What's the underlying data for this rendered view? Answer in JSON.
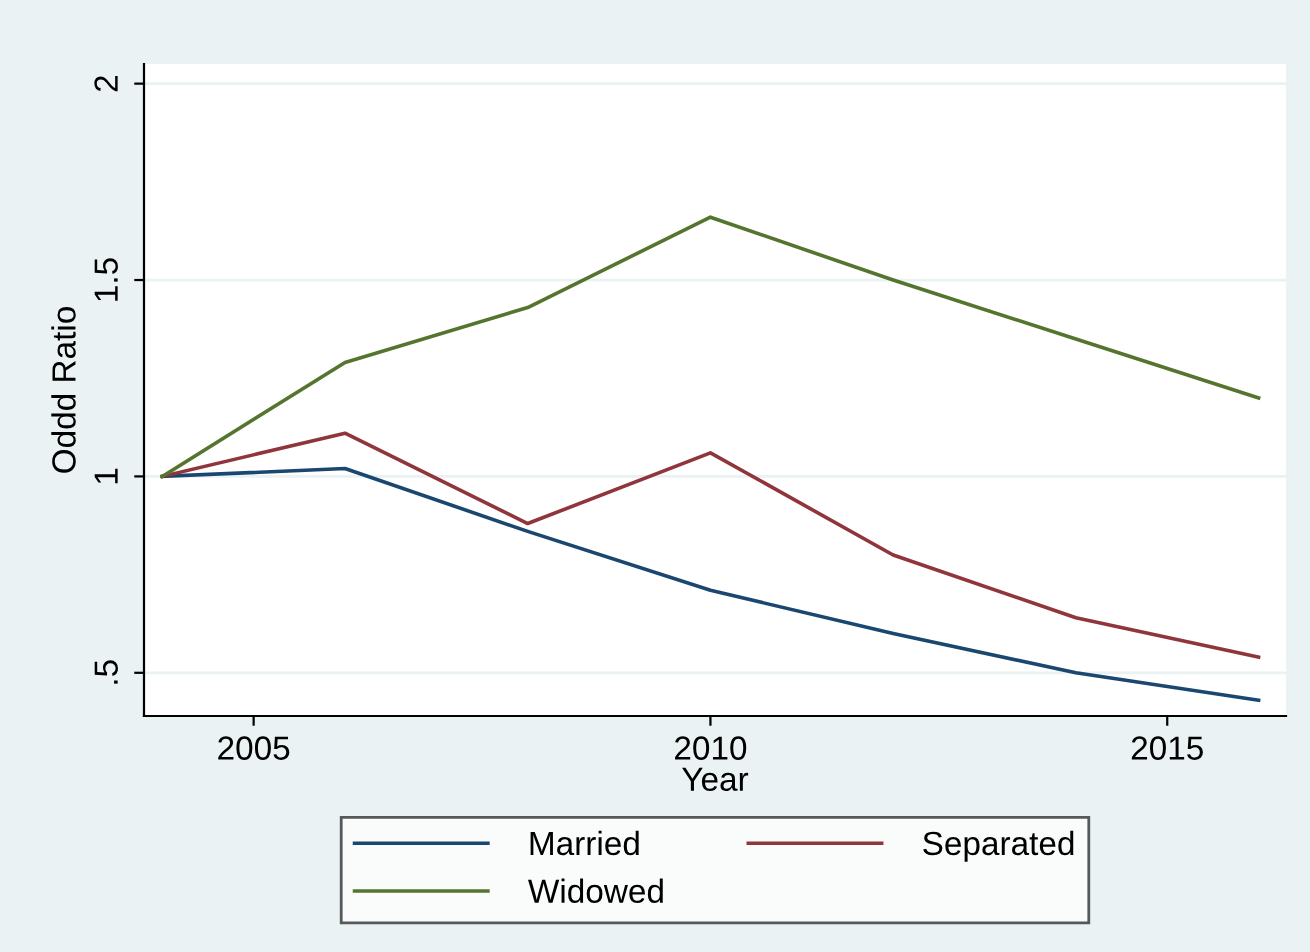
{
  "chart_data": {
    "type": "line",
    "xlabel": "Year",
    "ylabel": "Oddd Ratio",
    "x": [
      2004,
      2006,
      2008,
      2010,
      2012,
      2014,
      2016
    ],
    "series": [
      {
        "name": "Married",
        "color": "#1a476f",
        "values": [
          1,
          1.02,
          0.86,
          0.71,
          0.6,
          0.5,
          0.43
        ]
      },
      {
        "name": "Separated",
        "color": "#90353b",
        "values": [
          1,
          1.11,
          0.88,
          1.06,
          0.8,
          0.64,
          0.54
        ]
      },
      {
        "name": "Widowed",
        "color": "#55752f",
        "values": [
          1,
          1.29,
          1.43,
          1.66,
          1.5,
          1.35,
          1.2
        ]
      }
    ],
    "xlim": [
      2003.8,
      2016.3
    ],
    "ylim": [
      0.39,
      2.05
    ],
    "xticks": [
      2005,
      2010,
      2015
    ],
    "yticks": [
      {
        "value": 0.5,
        "label": ".5"
      },
      1,
      1.5,
      2
    ],
    "grid": "y",
    "legend": "bottom",
    "marker": "none",
    "line_style": "solid"
  }
}
